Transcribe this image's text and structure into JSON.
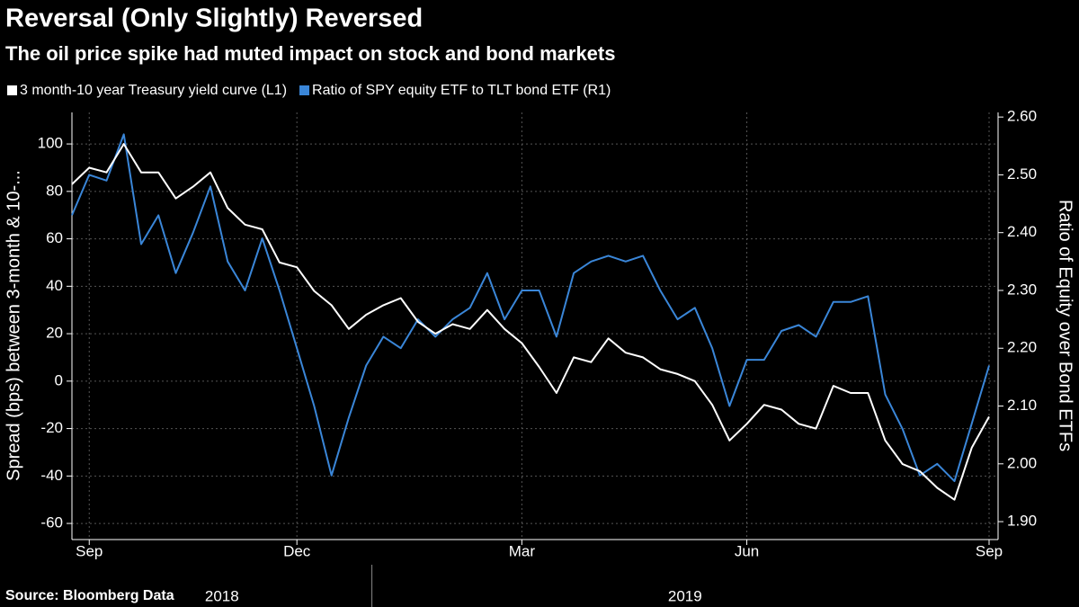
{
  "chart_data": {
    "type": "line",
    "title": "Reversal (Only Slightly) Reversed",
    "subtitle": "The oil price spike had muted impact on stock and bond markets",
    "source": "Source: Bloomberg Data",
    "ylabel": "Spread (bps) between 3-month & 10-...",
    "y2label": "Ratio of Equity over Bond ETFs",
    "categories": [
      null,
      "Sep",
      null,
      null,
      null,
      null,
      null,
      null,
      null,
      null,
      null,
      null,
      null,
      "Dec",
      null,
      null,
      null,
      null,
      null,
      null,
      null,
      null,
      null,
      null,
      null,
      null,
      "Mar",
      null,
      null,
      null,
      null,
      null,
      null,
      null,
      null,
      null,
      null,
      null,
      null,
      "Jun",
      null,
      null,
      null,
      null,
      null,
      null,
      null,
      null,
      null,
      null,
      null,
      null,
      null,
      "Sep"
    ],
    "years": [
      "2018",
      "2019"
    ],
    "series": [
      {
        "name": "3 month-10 year Treasury yield curve (L1)",
        "color": "#ffffff",
        "axis": "y",
        "values": [
          83,
          90,
          88,
          100,
          88,
          88,
          77,
          82,
          88,
          73,
          66,
          64,
          50,
          48,
          38,
          32,
          22,
          28,
          32,
          35,
          25,
          20,
          24,
          22,
          30,
          22,
          16,
          6,
          -5,
          10,
          8,
          18,
          12,
          10,
          5,
          3,
          0,
          -10,
          -25,
          -18,
          -10,
          -12,
          -18,
          -20,
          -2,
          -5,
          -5,
          -25,
          -35,
          -38,
          -45,
          -50,
          -28,
          -15
        ]
      },
      {
        "name": "Ratio of SPY equity ETF to TLT bond ETF (R1)",
        "color": "#3a86d8",
        "axis": "y2",
        "values": [
          2.43,
          2.5,
          2.49,
          2.57,
          2.38,
          2.43,
          2.33,
          2.4,
          2.48,
          2.35,
          2.3,
          2.39,
          2.3,
          2.2,
          2.1,
          1.98,
          2.08,
          2.17,
          2.22,
          2.2,
          2.25,
          2.22,
          2.25,
          2.27,
          2.33,
          2.25,
          2.3,
          2.3,
          2.22,
          2.33,
          2.35,
          2.36,
          2.35,
          2.36,
          2.3,
          2.25,
          2.27,
          2.2,
          2.1,
          2.18,
          2.18,
          2.23,
          2.24,
          2.22,
          2.28,
          2.28,
          2.29,
          2.12,
          2.06,
          1.98,
          2.0,
          1.97,
          2.07,
          2.17
        ]
      }
    ],
    "ylim": [
      -66.8,
      113.3
    ],
    "yticks": [
      -60,
      -40,
      -20,
      0,
      20,
      40,
      60,
      80,
      100
    ],
    "y2lim": [
      1.869,
      2.608
    ],
    "y2ticks": [
      {
        "value": 1.9,
        "label": "1.90"
      },
      {
        "value": 2.0,
        "label": "2.00"
      },
      {
        "value": 2.1,
        "label": "2.10"
      },
      {
        "value": 2.2,
        "label": "2.20"
      },
      {
        "value": 2.3,
        "label": "2.30"
      },
      {
        "value": 2.4,
        "label": "2.40"
      },
      {
        "value": 2.5,
        "label": "2.50"
      },
      {
        "value": 2.6,
        "label": "2.60"
      }
    ],
    "grid": true
  }
}
